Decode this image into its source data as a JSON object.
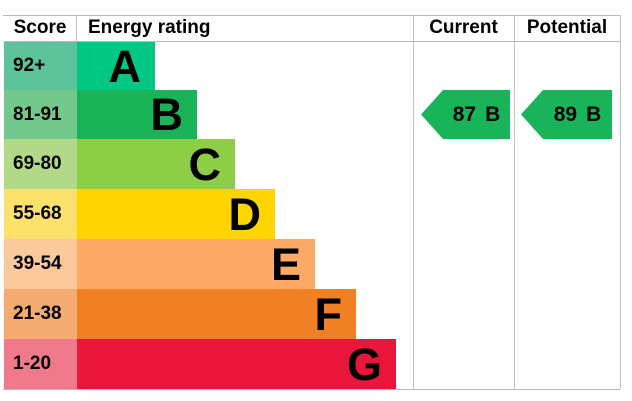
{
  "header": {
    "score": "Score",
    "energy_rating": "Energy rating",
    "current": "Current",
    "potential": "Potential"
  },
  "bands": [
    {
      "letter": "A",
      "score_range": "92+",
      "band_color": "#00c781",
      "score_color": "#5dc39b"
    },
    {
      "letter": "B",
      "score_range": "81-91",
      "band_color": "#19b459",
      "score_color": "#73c98b"
    },
    {
      "letter": "C",
      "score_range": "69-80",
      "band_color": "#8dce46",
      "score_color": "#b1d987"
    },
    {
      "letter": "D",
      "score_range": "55-68",
      "band_color": "#ffd500",
      "score_color": "#fce26d"
    },
    {
      "letter": "E",
      "score_range": "39-54",
      "band_color": "#fcaa65",
      "score_color": "#fcc99d"
    },
    {
      "letter": "F",
      "score_range": "21-38",
      "band_color": "#ef8023",
      "score_color": "#f6ac70"
    },
    {
      "letter": "G",
      "score_range": "1-20",
      "band_color": "#e9153b",
      "score_color": "#f07a8b"
    }
  ],
  "current": {
    "score": "87",
    "rating": "B",
    "arrow_color": "#19b459"
  },
  "potential": {
    "score": "89",
    "rating": "B",
    "arrow_color": "#19b459"
  },
  "chart_data": {
    "type": "bar",
    "columns": [
      "Score",
      "Energy rating",
      "Current",
      "Potential"
    ],
    "categories": [
      "A",
      "B",
      "C",
      "D",
      "E",
      "F",
      "G"
    ],
    "score_ranges": [
      "92+",
      "81-91",
      "69-80",
      "55-68",
      "39-54",
      "21-38",
      "1-20"
    ],
    "band_colors": [
      "#00c781",
      "#19b459",
      "#8dce46",
      "#ffd500",
      "#fcaa65",
      "#ef8023",
      "#e9153b"
    ],
    "bar_lengths_relative": [
      1,
      2,
      3,
      4,
      5,
      6,
      7
    ],
    "current": {
      "value": 87,
      "rating": "B"
    },
    "potential": {
      "value": 89,
      "rating": "B"
    },
    "legend_position": "none",
    "grid": false
  }
}
